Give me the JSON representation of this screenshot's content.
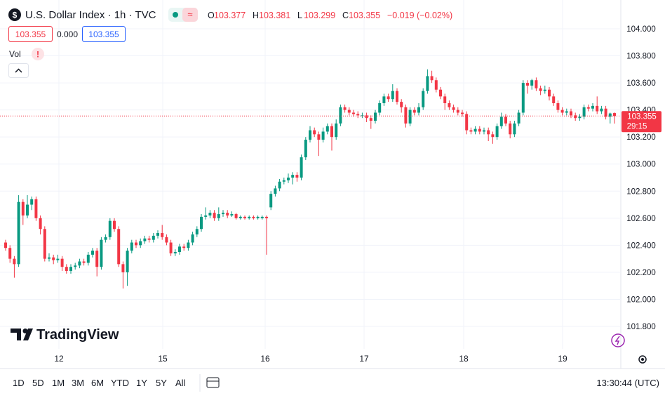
{
  "chart_data": {
    "type": "candlestick",
    "title": "U.S. Dollar Index · 1h · TVC",
    "ohlc_letters": [
      "O",
      "H",
      "L",
      "C"
    ],
    "change": "−0.019 (−0.02%)",
    "indicator_value": "0.000",
    "volume_label": "Vol",
    "countdown": "29:15",
    "brand": "TradingView",
    "ranges": [
      "1D",
      "5D",
      "1M",
      "3M",
      "6M",
      "YTD",
      "1Y",
      "5Y",
      "All"
    ],
    "clock": "13:30:44 (UTC)",
    "up_color": "#089981",
    "down_color": "#f23645",
    "grid": true,
    "xticks": [
      "12",
      "15",
      "16",
      "17",
      "18",
      "19"
    ],
    "ylim": [
      101.7,
      104.1
    ],
    "yticks": [
      {
        "value": 104,
        "label": "104.000"
      },
      {
        "value": 103.8,
        "label": "103.800"
      },
      {
        "value": 103.6,
        "label": "103.600"
      },
      {
        "value": 103.4,
        "label": "103.400"
      },
      {
        "value": 103.2,
        "label": "103.200"
      },
      {
        "value": 103,
        "label": "103.000"
      },
      {
        "value": 102.8,
        "label": "102.800"
      },
      {
        "value": 102.6,
        "label": "102.600"
      },
      {
        "value": 102.4,
        "label": "102.400"
      },
      {
        "value": 102.2,
        "label": "102.200"
      },
      {
        "value": 102,
        "label": "102.000"
      },
      {
        "value": 101.8,
        "label": "101.800"
      }
    ],
    "candles": [
      [
        102.42,
        102.44,
        102.36,
        102.38
      ],
      [
        102.38,
        102.4,
        102.27,
        102.3
      ],
      [
        102.3,
        102.32,
        102.16,
        102.26
      ],
      [
        102.26,
        102.77,
        102.24,
        102.72
      ],
      [
        102.72,
        102.74,
        102.55,
        102.62
      ],
      [
        102.62,
        102.77,
        102.6,
        102.7
      ],
      [
        102.7,
        102.76,
        102.66,
        102.74
      ],
      [
        102.74,
        102.76,
        102.58,
        102.6
      ],
      [
        102.6,
        102.62,
        102.48,
        102.52
      ],
      [
        102.52,
        102.54,
        102.28,
        102.3
      ],
      [
        102.3,
        102.34,
        102.28,
        102.31
      ],
      [
        102.31,
        102.33,
        102.26,
        102.29
      ],
      [
        102.29,
        102.33,
        102.27,
        102.3
      ],
      [
        102.3,
        102.32,
        102.21,
        102.24
      ],
      [
        102.24,
        102.26,
        102.19,
        102.21
      ],
      [
        102.21,
        102.26,
        102.19,
        102.24
      ],
      [
        102.24,
        102.27,
        102.22,
        102.25
      ],
      [
        102.25,
        102.3,
        102.23,
        102.28
      ],
      [
        102.28,
        102.3,
        102.25,
        102.27
      ],
      [
        102.27,
        102.35,
        102.25,
        102.33
      ],
      [
        102.33,
        102.38,
        102.31,
        102.36
      ],
      [
        102.36,
        102.38,
        102.17,
        102.24
      ],
      [
        102.24,
        102.46,
        102.22,
        102.44
      ],
      [
        102.44,
        102.48,
        102.42,
        102.46
      ],
      [
        102.46,
        102.6,
        102.44,
        102.58
      ],
      [
        102.58,
        102.6,
        102.5,
        102.52
      ],
      [
        102.52,
        102.54,
        102.24,
        102.26
      ],
      [
        102.26,
        102.28,
        102.08,
        102.2
      ],
      [
        102.2,
        102.38,
        102.1,
        102.36
      ],
      [
        102.36,
        102.44,
        102.34,
        102.42
      ],
      [
        102.42,
        102.44,
        102.38,
        102.4
      ],
      [
        102.4,
        102.45,
        102.38,
        102.43
      ],
      [
        102.43,
        102.47,
        102.41,
        102.45
      ],
      [
        102.45,
        102.47,
        102.42,
        102.44
      ],
      [
        102.44,
        102.49,
        102.42,
        102.47
      ],
      [
        102.47,
        102.51,
        102.45,
        102.49
      ],
      [
        102.49,
        102.55,
        102.44,
        102.46
      ],
      [
        102.46,
        102.48,
        102.4,
        102.42
      ],
      [
        102.42,
        102.44,
        102.32,
        102.34
      ],
      [
        102.34,
        102.37,
        102.32,
        102.35
      ],
      [
        102.35,
        102.41,
        102.33,
        102.39
      ],
      [
        102.39,
        102.41,
        102.36,
        102.38
      ],
      [
        102.38,
        102.44,
        102.36,
        102.42
      ],
      [
        102.42,
        102.5,
        102.4,
        102.48
      ],
      [
        102.48,
        102.54,
        102.46,
        102.52
      ],
      [
        102.52,
        102.63,
        102.5,
        102.61
      ],
      [
        102.61,
        102.68,
        102.59,
        102.62
      ],
      [
        102.62,
        102.66,
        102.6,
        102.64
      ],
      [
        102.64,
        102.66,
        102.58,
        102.6
      ],
      [
        102.6,
        102.68,
        102.58,
        102.63
      ],
      [
        102.63,
        102.66,
        102.61,
        102.64
      ],
      [
        102.64,
        102.66,
        102.6,
        102.62
      ],
      [
        102.62,
        102.65,
        102.61,
        102.63
      ],
      [
        102.63,
        102.64,
        102.59,
        102.6
      ],
      [
        102.6,
        102.62,
        102.59,
        102.61
      ],
      [
        102.61,
        102.62,
        102.59,
        102.6
      ],
      [
        102.6,
        102.62,
        102.59,
        102.61
      ],
      [
        102.61,
        102.62,
        102.59,
        102.6
      ],
      [
        102.6,
        102.62,
        102.59,
        102.61
      ],
      [
        102.6,
        102.62,
        102.59,
        102.61
      ],
      [
        102.61,
        102.62,
        102.33,
        102.6
      ],
      [
        102.68,
        102.8,
        102.66,
        102.78
      ],
      [
        102.78,
        102.84,
        102.76,
        102.82
      ],
      [
        102.82,
        102.89,
        102.8,
        102.87
      ],
      [
        102.87,
        102.9,
        102.85,
        102.88
      ],
      [
        102.88,
        102.93,
        102.86,
        102.9
      ],
      [
        102.9,
        102.94,
        102.85,
        102.92
      ],
      [
        102.92,
        102.94,
        102.87,
        102.9
      ],
      [
        102.9,
        103.07,
        102.88,
        103.05
      ],
      [
        103.05,
        103.2,
        103.03,
        103.18
      ],
      [
        103.18,
        103.28,
        103.16,
        103.25
      ],
      [
        103.25,
        103.27,
        103.2,
        103.22
      ],
      [
        103.22,
        103.24,
        103.06,
        103.18
      ],
      [
        103.18,
        103.27,
        103.16,
        103.24
      ],
      [
        103.24,
        103.3,
        103.22,
        103.28
      ],
      [
        103.28,
        103.3,
        103.1,
        103.2
      ],
      [
        103.2,
        103.33,
        103.18,
        103.3
      ],
      [
        103.3,
        103.44,
        103.28,
        103.42
      ],
      [
        103.42,
        103.44,
        103.38,
        103.4
      ],
      [
        103.4,
        103.42,
        103.36,
        103.38
      ],
      [
        103.38,
        103.4,
        103.35,
        103.37
      ],
      [
        103.37,
        103.39,
        103.34,
        103.36
      ],
      [
        103.36,
        103.38,
        103.34,
        103.36
      ],
      [
        103.36,
        103.38,
        103.31,
        103.34
      ],
      [
        103.34,
        103.36,
        103.26,
        103.32
      ],
      [
        103.32,
        103.4,
        103.3,
        103.38
      ],
      [
        103.38,
        103.47,
        103.36,
        103.45
      ],
      [
        103.45,
        103.52,
        103.43,
        103.5
      ],
      [
        103.5,
        103.52,
        103.46,
        103.48
      ],
      [
        103.48,
        103.59,
        103.46,
        103.54
      ],
      [
        103.54,
        103.56,
        103.44,
        103.46
      ],
      [
        103.46,
        103.48,
        103.38,
        103.42
      ],
      [
        103.42,
        103.44,
        103.27,
        103.3
      ],
      [
        103.3,
        103.42,
        103.28,
        103.4
      ],
      [
        103.4,
        103.42,
        103.36,
        103.38
      ],
      [
        103.38,
        103.45,
        103.36,
        103.42
      ],
      [
        103.42,
        103.56,
        103.4,
        103.54
      ],
      [
        103.54,
        103.7,
        103.52,
        103.65
      ],
      [
        103.65,
        103.69,
        103.6,
        103.62
      ],
      [
        103.62,
        103.64,
        103.53,
        103.55
      ],
      [
        103.55,
        103.57,
        103.48,
        103.5
      ],
      [
        103.5,
        103.52,
        103.4,
        103.45
      ],
      [
        103.45,
        103.47,
        103.4,
        103.42
      ],
      [
        103.42,
        103.44,
        103.38,
        103.4
      ],
      [
        103.4,
        103.42,
        103.36,
        103.38
      ],
      [
        103.38,
        103.4,
        103.35,
        103.37
      ],
      [
        103.37,
        103.39,
        103.22,
        103.25
      ],
      [
        103.25,
        103.27,
        103.22,
        103.24
      ],
      [
        103.24,
        103.28,
        103.22,
        103.26
      ],
      [
        103.26,
        103.28,
        103.22,
        103.24
      ],
      [
        103.24,
        103.27,
        103.22,
        103.25
      ],
      [
        103.25,
        103.27,
        103.17,
        103.22
      ],
      [
        103.22,
        103.24,
        103.15,
        103.2
      ],
      [
        103.2,
        103.3,
        103.18,
        103.28
      ],
      [
        103.28,
        103.38,
        103.26,
        103.35
      ],
      [
        103.35,
        103.37,
        103.28,
        103.3
      ],
      [
        103.3,
        103.32,
        103.19,
        103.22
      ],
      [
        103.22,
        103.32,
        103.2,
        103.3
      ],
      [
        103.3,
        103.4,
        103.28,
        103.38
      ],
      [
        103.38,
        103.62,
        103.36,
        103.6
      ],
      [
        103.6,
        103.62,
        103.52,
        103.58
      ],
      [
        103.58,
        103.63,
        103.55,
        103.62
      ],
      [
        103.62,
        103.64,
        103.54,
        103.56
      ],
      [
        103.56,
        103.58,
        103.51,
        103.54
      ],
      [
        103.54,
        103.58,
        103.52,
        103.55
      ],
      [
        103.55,
        103.57,
        103.47,
        103.5
      ],
      [
        103.5,
        103.52,
        103.43,
        103.45
      ],
      [
        103.45,
        103.47,
        103.38,
        103.4
      ],
      [
        103.4,
        103.42,
        103.36,
        103.38
      ],
      [
        103.38,
        103.41,
        103.36,
        103.39
      ],
      [
        103.39,
        103.41,
        103.34,
        103.36
      ],
      [
        103.36,
        103.38,
        103.32,
        103.34
      ],
      [
        103.34,
        103.37,
        103.32,
        103.35
      ],
      [
        103.35,
        103.44,
        103.33,
        103.42
      ],
      [
        103.42,
        103.44,
        103.39,
        103.41
      ],
      [
        103.41,
        103.45,
        103.39,
        103.43
      ],
      [
        103.43,
        103.5,
        103.37,
        103.39
      ],
      [
        103.39,
        103.43,
        103.37,
        103.41
      ],
      [
        103.41,
        103.43,
        103.33,
        103.35
      ],
      [
        103.35,
        103.38,
        103.3,
        103.374
      ],
      [
        103.377,
        103.381,
        103.299,
        103.355
      ]
    ]
  }
}
